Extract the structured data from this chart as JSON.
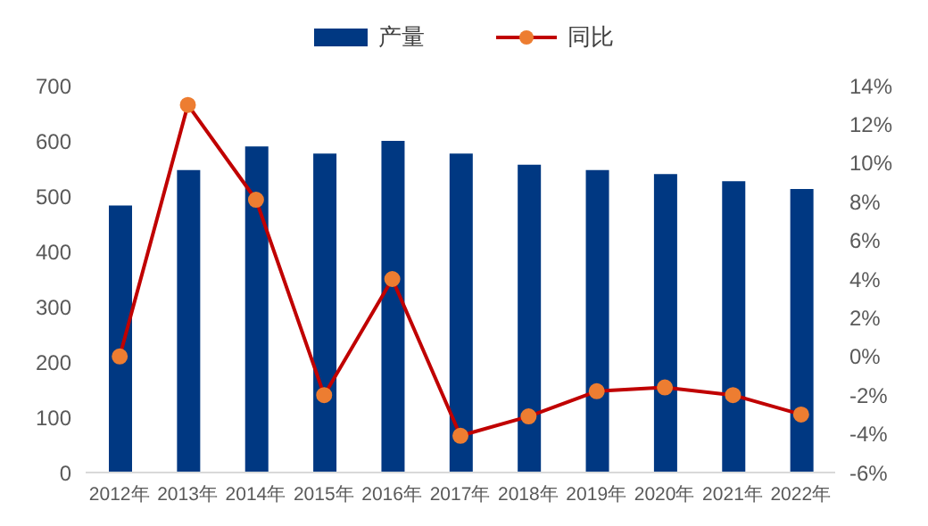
{
  "chart_data": {
    "type": "bar",
    "categories": [
      "2012年",
      "2013年",
      "2014年",
      "2015年",
      "2016年",
      "2017年",
      "2018年",
      "2019年",
      "2020年",
      "2021年",
      "2022年"
    ],
    "series": [
      {
        "name": "产量",
        "color": "#003882",
        "values": [
          483,
          547,
          590,
          577,
          600,
          577,
          557,
          547,
          540,
          527,
          513
        ]
      },
      {
        "name": "同比",
        "type": "line",
        "axis": "y2",
        "color": "#c00000",
        "colors": [
          "#ed7d31",
          "#ed7d31",
          "#ed7d31",
          "#ed7d31",
          "#ed7d31",
          "#ed7d31",
          "#ed7d31",
          "#ed7d31",
          "#ed7d31",
          "#ed7d31",
          "#ed7d31"
        ],
        "values": [
          0,
          13,
          8.1,
          -2,
          4,
          -4.1,
          -3.1,
          -1.8,
          -1.6,
          -2,
          -3
        ]
      }
    ],
    "ylim": [
      0,
      700
    ],
    "yticks": [
      0,
      100,
      200,
      300,
      400,
      500,
      600,
      700
    ],
    "y2lim": [
      -6,
      14
    ],
    "y2ticks": [
      {
        "value": -6,
        "label": "-6%"
      },
      {
        "value": -4,
        "label": "-4%"
      },
      {
        "value": -2,
        "label": "-2%"
      },
      {
        "value": 0,
        "label": "0%"
      },
      {
        "value": 2,
        "label": "2%"
      },
      {
        "value": 4,
        "label": "4%"
      },
      {
        "value": 6,
        "label": "6%"
      },
      {
        "value": 8,
        "label": "8%"
      },
      {
        "value": 10,
        "label": "10%"
      },
      {
        "value": 12,
        "label": "12%"
      },
      {
        "value": 14,
        "label": "14%"
      }
    ],
    "legend": "top",
    "marker": "circle",
    "grid": false
  }
}
